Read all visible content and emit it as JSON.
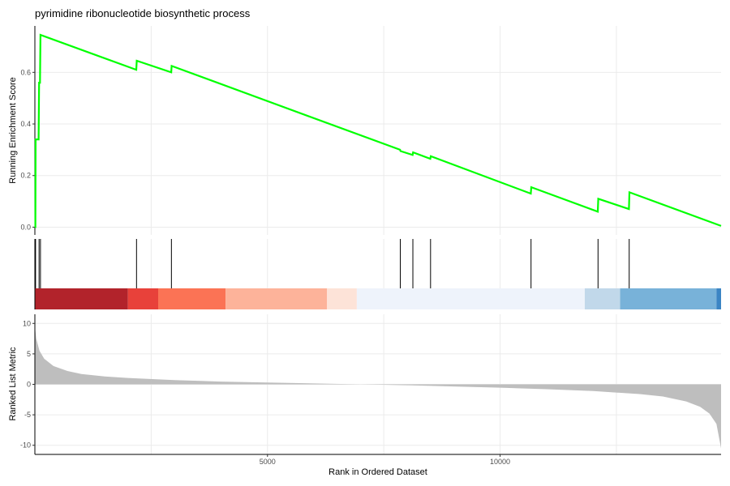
{
  "chart_data": {
    "type": "line",
    "title": "pyrimidine ribonucleotide biosynthetic process",
    "x_axis": {
      "label": "Rank in Ordered Dataset",
      "range": [
        0,
        14750
      ],
      "ticks": [
        5000,
        10000
      ]
    },
    "es_panel": {
      "ylabel": "Running Enrichment Score",
      "ylim": [
        -0.03,
        0.78
      ],
      "yticks": [
        0.0,
        0.2,
        0.4,
        0.6
      ],
      "ytick_labels": [
        "0.0",
        "0.2",
        "0.4",
        "0.6"
      ],
      "line_color": "#00ff00",
      "points": [
        [
          0,
          0.0
        ],
        [
          10,
          0.0
        ],
        [
          15,
          0.34
        ],
        [
          80,
          0.34
        ],
        [
          90,
          0.56
        ],
        [
          110,
          0.56
        ],
        [
          120,
          0.745
        ],
        [
          2180,
          0.61
        ],
        [
          2190,
          0.645
        ],
        [
          2930,
          0.6
        ],
        [
          2940,
          0.625
        ],
        [
          7850,
          0.3
        ],
        [
          7860,
          0.295
        ],
        [
          8120,
          0.28
        ],
        [
          8130,
          0.29
        ],
        [
          8500,
          0.265
        ],
        [
          8510,
          0.275
        ],
        [
          10660,
          0.13
        ],
        [
          10670,
          0.155
        ],
        [
          12100,
          0.06
        ],
        [
          12110,
          0.11
        ],
        [
          12770,
          0.07
        ],
        [
          12780,
          0.135
        ],
        [
          14750,
          0.005
        ]
      ]
    },
    "gene_hits": [
      15,
      90,
      120,
      2185,
      2935,
      7855,
      8125,
      8505,
      10665,
      12105,
      12775
    ],
    "color_bar": [
      {
        "start": 0,
        "end": 2000,
        "color": "#b2232b"
      },
      {
        "start": 2000,
        "end": 2650,
        "color": "#e8413a"
      },
      {
        "start": 2650,
        "end": 4100,
        "color": "#fb7355"
      },
      {
        "start": 4100,
        "end": 6280,
        "color": "#fdb39a"
      },
      {
        "start": 6280,
        "end": 6920,
        "color": "#fde3d8"
      },
      {
        "start": 6920,
        "end": 11820,
        "color": "#eef3fb"
      },
      {
        "start": 11820,
        "end": 12580,
        "color": "#c1d8ea"
      },
      {
        "start": 12580,
        "end": 14650,
        "color": "#78b2d9"
      },
      {
        "start": 14650,
        "end": 14750,
        "color": "#3b85c4"
      }
    ],
    "metric_panel": {
      "ylabel": "Ranked List Metric",
      "ylim": [
        -11.5,
        11.5
      ],
      "yticks": [
        10,
        5,
        0,
        -5,
        -10
      ],
      "ytick_labels": [
        "10",
        "5",
        "0",
        "-5",
        "-10"
      ],
      "fill_color": "#bebebe",
      "curve": [
        [
          0,
          9.5
        ],
        [
          30,
          7.5
        ],
        [
          100,
          5.5
        ],
        [
          200,
          4.2
        ],
        [
          400,
          3.0
        ],
        [
          700,
          2.2
        ],
        [
          1000,
          1.7
        ],
        [
          1500,
          1.3
        ],
        [
          2000,
          1.05
        ],
        [
          3000,
          0.7
        ],
        [
          4000,
          0.45
        ],
        [
          5000,
          0.3
        ],
        [
          6000,
          0.15
        ],
        [
          7000,
          0.0
        ],
        [
          8000,
          -0.15
        ],
        [
          9000,
          -0.35
        ],
        [
          10000,
          -0.55
        ],
        [
          11000,
          -0.8
        ],
        [
          12000,
          -1.1
        ],
        [
          13000,
          -1.6
        ],
        [
          13500,
          -2.0
        ],
        [
          14000,
          -2.8
        ],
        [
          14300,
          -3.7
        ],
        [
          14500,
          -4.8
        ],
        [
          14650,
          -6.5
        ],
        [
          14750,
          -10.5
        ]
      ]
    },
    "grid": true
  }
}
